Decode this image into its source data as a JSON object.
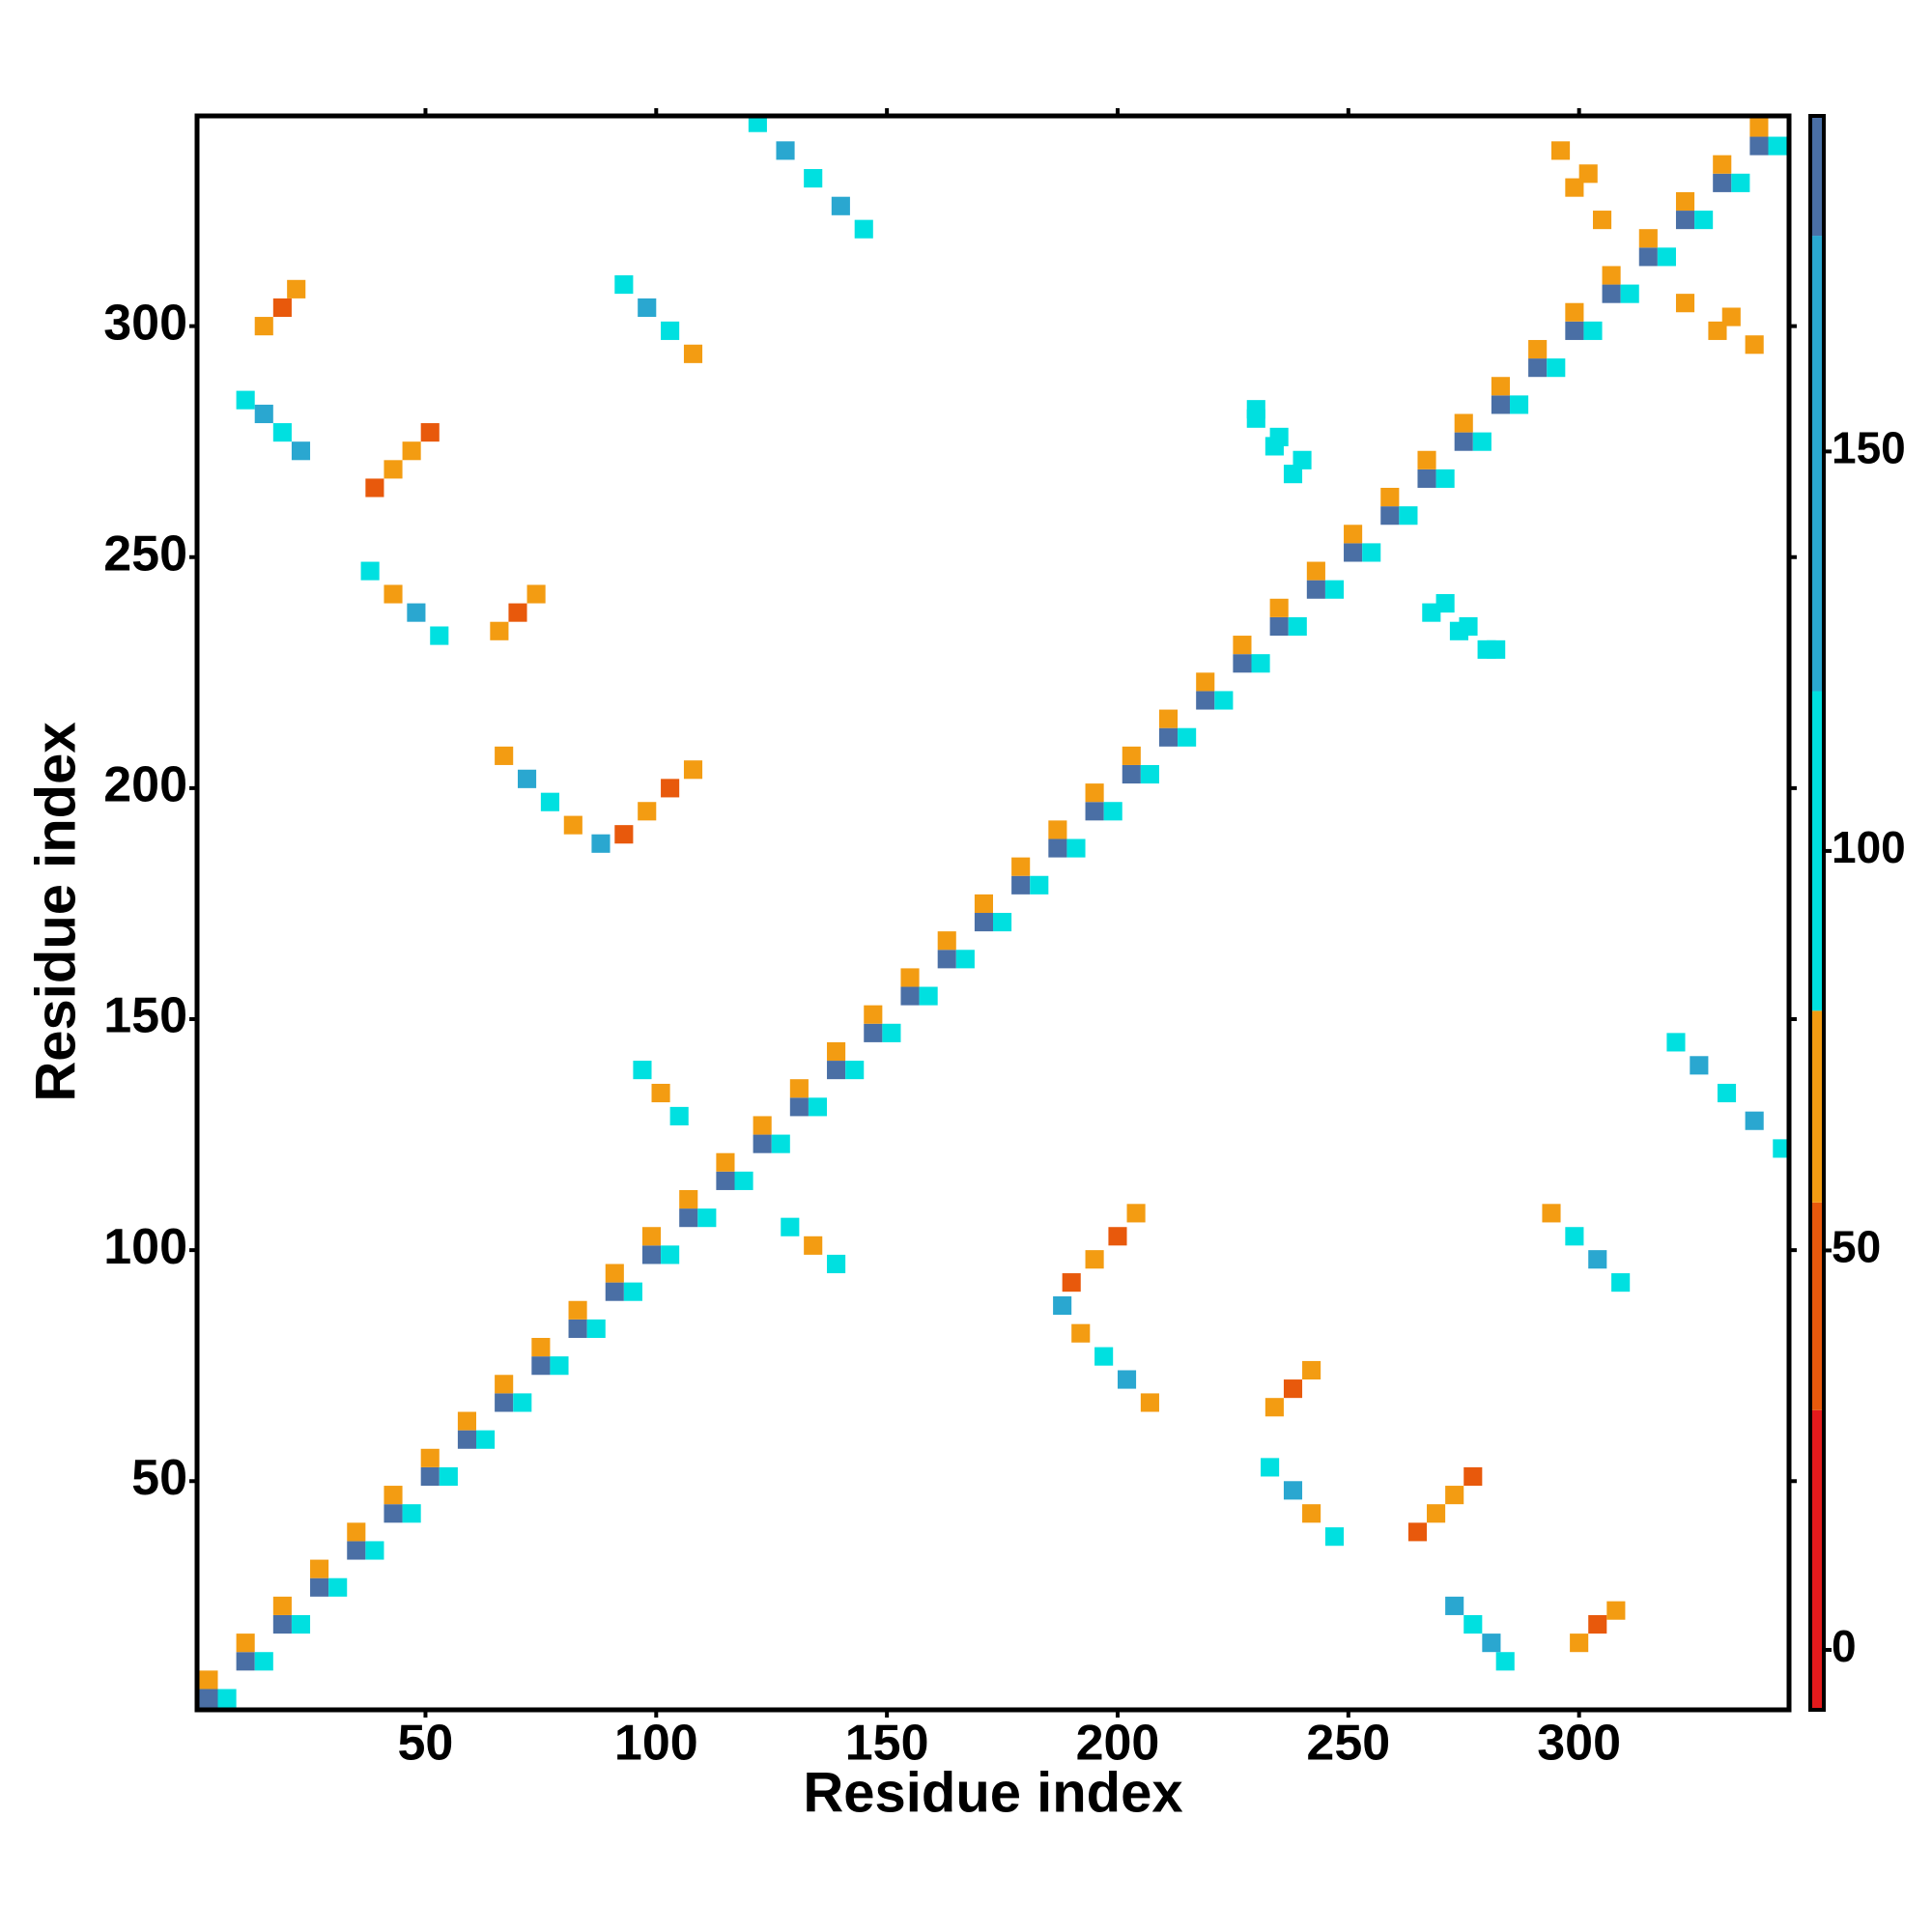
{
  "chart_data": {
    "type": "heatmap",
    "xlabel": "Residue index",
    "ylabel": "Residue index",
    "xlim": [
      0.5,
      345.5
    ],
    "ylim": [
      0.5,
      345.5
    ],
    "xticks": [
      50,
      100,
      150,
      200,
      250,
      300
    ],
    "yticks": [
      50,
      100,
      150,
      200,
      250,
      300
    ],
    "colorbar": {
      "lim": [
        -7.5,
        192
      ],
      "ticks": [
        0,
        50,
        100,
        150
      ],
      "stops": [
        -7.5,
        30,
        56,
        80,
        120,
        177,
        192
      ],
      "colors": [
        "#e31a1c",
        "#e8590c",
        "#f39c12",
        "#00e0e0",
        "#2aa7d0",
        "#4a6fa5"
      ]
    },
    "cells": {
      "x": [
        3,
        11,
        19,
        27,
        35,
        43,
        51,
        59,
        67,
        75,
        83,
        91,
        99,
        107,
        115,
        123,
        131,
        139,
        147,
        155,
        163,
        171,
        179,
        187,
        195,
        203,
        211,
        219,
        227,
        235,
        243,
        251,
        259,
        267,
        275,
        283,
        291,
        299,
        307,
        315,
        323,
        331,
        339,
        3,
        11,
        19,
        27,
        35,
        43,
        51,
        59,
        67,
        75,
        83,
        91,
        99,
        107,
        115,
        123,
        131,
        139,
        147,
        155,
        163,
        171,
        179,
        187,
        195,
        203,
        211,
        219,
        227,
        235,
        243,
        251,
        259,
        267,
        275,
        283,
        291,
        299,
        307,
        315,
        323,
        331,
        339,
        7,
        15,
        23,
        31,
        39,
        47,
        55,
        63,
        71,
        79,
        87,
        95,
        103,
        111,
        119,
        127,
        135,
        143,
        151,
        159,
        167,
        175,
        183,
        191,
        199,
        207,
        215,
        223,
        231,
        239,
        247,
        255,
        263,
        271,
        279,
        287,
        295,
        303,
        311,
        319,
        327,
        335,
        343,
        122,
        128,
        134,
        140,
        145,
        15,
        19,
        22,
        11,
        15,
        19,
        23,
        39,
        43,
        47,
        51,
        38,
        43,
        48,
        53,
        66,
        70,
        74,
        93,
        98,
        103,
        108,
        67,
        72,
        77,
        82,
        88,
        93,
        98,
        103,
        108,
        97,
        101,
        105,
        230,
        235,
        240,
        268,
        274,
        280,
        296,
        302,
        323,
        330,
        344,
        338,
        332,
        326,
        321,
        300,
        304,
        308,
        284,
        281,
        277,
        273,
        265,
        269,
        273,
        277,
        247,
        242,
        238,
        233,
        234,
        238,
        242,
        309,
        304,
        299,
        294,
        207,
        202,
        197,
        192,
        188,
        190,
        195,
        200,
        204,
        139,
        134,
        129,
        282,
        276,
        271,
        238,
        234,
        230,
        338,
        333,
        305,
        299
      ],
      "y": [
        3,
        11,
        19,
        27,
        35,
        43,
        51,
        59,
        67,
        75,
        83,
        91,
        99,
        107,
        115,
        123,
        131,
        139,
        147,
        155,
        163,
        171,
        179,
        187,
        195,
        203,
        211,
        219,
        227,
        235,
        243,
        251,
        259,
        267,
        275,
        283,
        291,
        299,
        307,
        315,
        323,
        331,
        339,
        7,
        15,
        23,
        31,
        39,
        47,
        55,
        63,
        71,
        79,
        87,
        95,
        103,
        111,
        119,
        127,
        135,
        143,
        151,
        159,
        167,
        175,
        183,
        191,
        199,
        207,
        215,
        223,
        231,
        239,
        247,
        255,
        263,
        271,
        279,
        287,
        295,
        303,
        311,
        319,
        327,
        335,
        343,
        3,
        11,
        19,
        27,
        35,
        43,
        51,
        59,
        67,
        75,
        83,
        91,
        99,
        107,
        115,
        123,
        131,
        139,
        147,
        155,
        163,
        171,
        179,
        187,
        195,
        203,
        211,
        219,
        227,
        235,
        243,
        251,
        259,
        267,
        275,
        283,
        291,
        299,
        307,
        315,
        323,
        331,
        339,
        344,
        338,
        332,
        326,
        321,
        300,
        304,
        308,
        284,
        281,
        277,
        273,
        265,
        269,
        273,
        277,
        247,
        242,
        238,
        233,
        234,
        238,
        242,
        309,
        304,
        299,
        294,
        207,
        202,
        197,
        192,
        188,
        190,
        195,
        200,
        204,
        139,
        134,
        129,
        282,
        276,
        271,
        238,
        234,
        230,
        338,
        333,
        305,
        299,
        122,
        128,
        134,
        140,
        145,
        15,
        19,
        22,
        11,
        15,
        19,
        23,
        39,
        43,
        47,
        51,
        38,
        43,
        48,
        53,
        66,
        70,
        74,
        93,
        98,
        103,
        108,
        67,
        72,
        77,
        82,
        88,
        93,
        98,
        103,
        108,
        97,
        101,
        105,
        230,
        235,
        240,
        268,
        274,
        280,
        296,
        302,
        323,
        330
      ],
      "values": [
        185,
        185,
        185,
        185,
        185,
        185,
        185,
        185,
        185,
        185,
        185,
        185,
        185,
        185,
        185,
        185,
        185,
        185,
        185,
        185,
        185,
        185,
        185,
        185,
        185,
        185,
        185,
        185,
        185,
        185,
        185,
        185,
        185,
        185,
        185,
        185,
        185,
        185,
        185,
        185,
        185,
        185,
        185,
        60,
        60,
        60,
        60,
        60,
        60,
        60,
        60,
        60,
        60,
        60,
        60,
        60,
        60,
        60,
        60,
        60,
        60,
        60,
        60,
        60,
        60,
        60,
        60,
        60,
        60,
        60,
        60,
        60,
        60,
        60,
        60,
        60,
        60,
        60,
        60,
        60,
        60,
        60,
        60,
        60,
        60,
        60,
        90,
        90,
        90,
        90,
        90,
        90,
        90,
        90,
        90,
        90,
        90,
        90,
        90,
        90,
        90,
        90,
        90,
        90,
        90,
        90,
        90,
        90,
        90,
        90,
        90,
        90,
        90,
        90,
        90,
        90,
        90,
        90,
        90,
        90,
        90,
        90,
        90,
        90,
        90,
        90,
        90,
        90,
        90,
        90,
        150,
        90,
        150,
        90,
        60,
        40,
        60,
        90,
        150,
        90,
        150,
        40,
        60,
        60,
        40,
        90,
        60,
        150,
        90,
        60,
        40,
        60,
        90,
        150,
        90,
        60,
        60,
        150,
        90,
        60,
        150,
        40,
        60,
        40,
        60,
        90,
        60,
        90,
        90,
        90,
        90,
        90,
        90,
        90,
        60,
        60,
        60,
        60,
        90,
        150,
        90,
        150,
        90,
        60,
        40,
        60,
        90,
        150,
        90,
        150,
        40,
        60,
        60,
        40,
        90,
        60,
        150,
        90,
        60,
        40,
        60,
        90,
        150,
        90,
        60,
        60,
        150,
        90,
        60,
        150,
        40,
        60,
        40,
        60,
        90,
        60,
        90,
        90,
        90,
        90,
        90,
        90,
        90,
        60,
        60,
        60,
        60
      ]
    }
  }
}
